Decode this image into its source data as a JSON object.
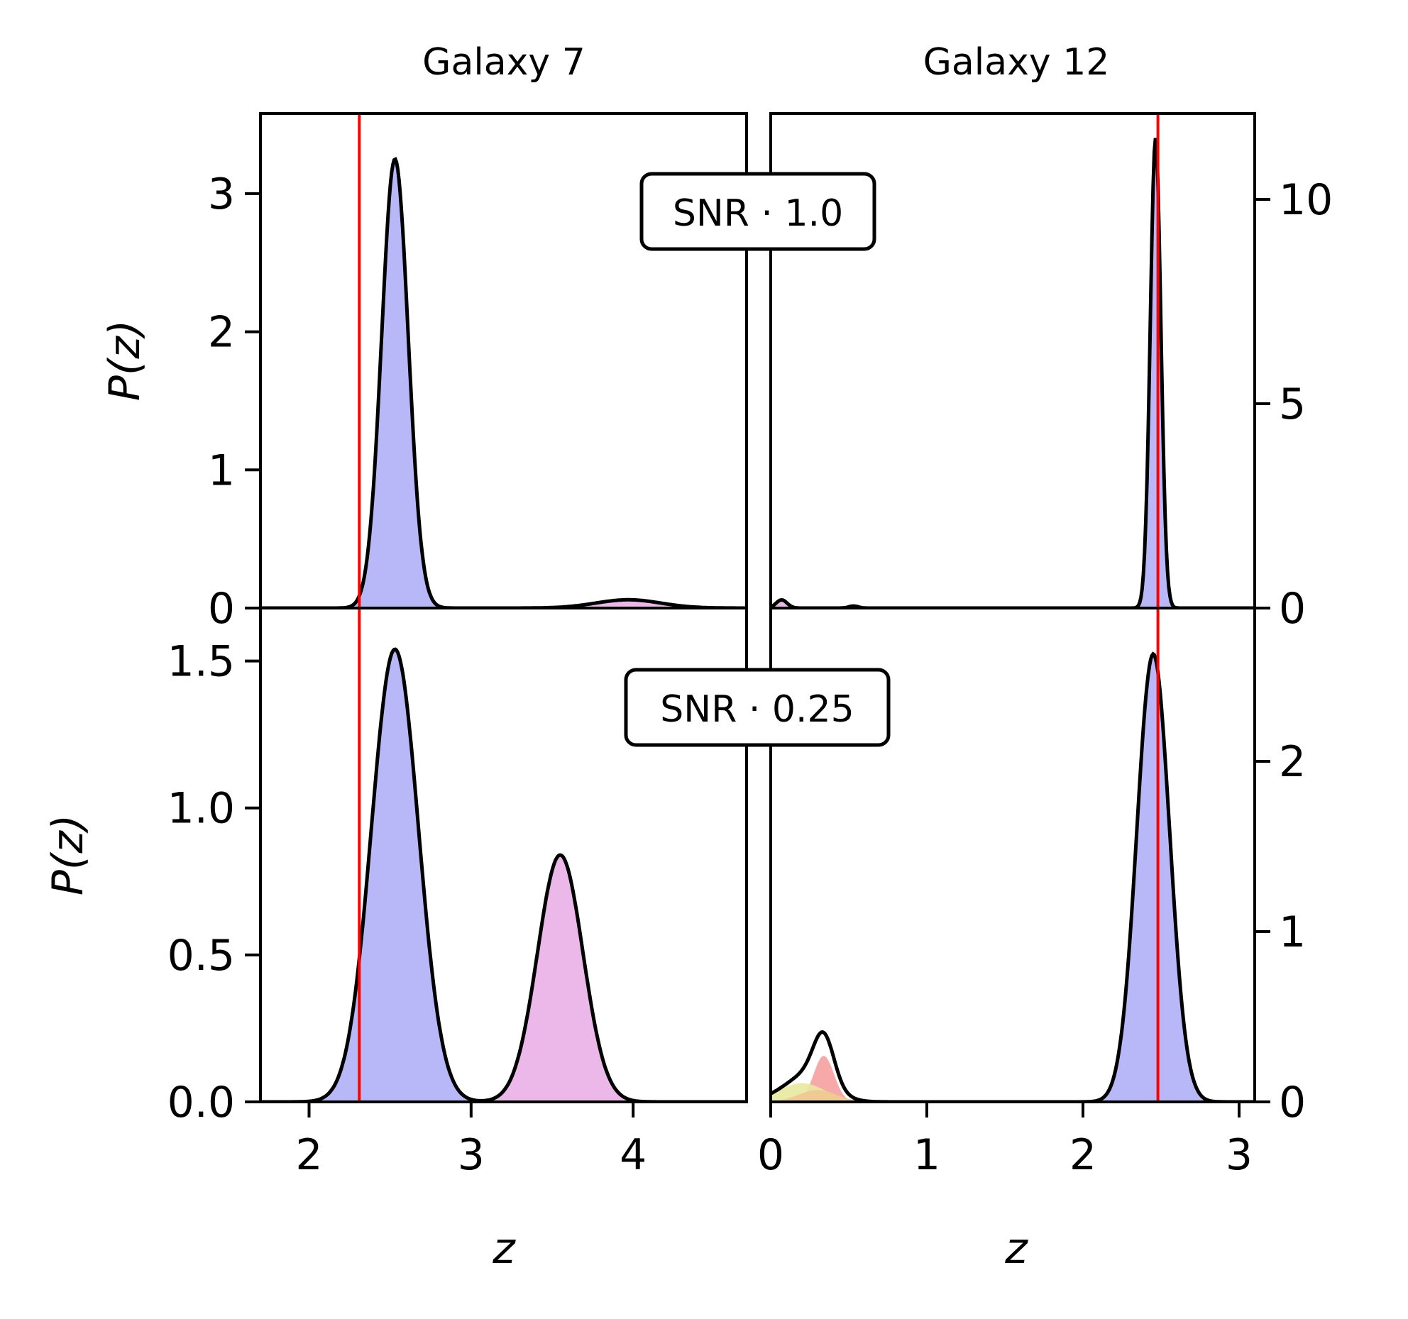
{
  "chart_data": [
    {
      "type": "area",
      "panel": "top-left",
      "title": "Galaxy 7",
      "annotation": "SNR · 1.0",
      "ylabel": "P(z)",
      "xlim": [
        1.7,
        4.7
      ],
      "ylim": [
        0,
        3.58
      ],
      "yticks": [
        "0",
        "1",
        "2",
        "3"
      ],
      "true_z": 2.31,
      "components": [
        {
          "color": "#b0b0f8",
          "mu": 2.53,
          "sigma": 0.082,
          "amp": 3.25
        },
        {
          "color": "#eab0e8",
          "mu": 3.97,
          "sigma": 0.2,
          "amp": 0.06
        }
      ]
    },
    {
      "type": "area",
      "panel": "top-right",
      "title": "Galaxy 12",
      "ylim": [
        0,
        12.1
      ],
      "xlim": [
        0,
        3.1
      ],
      "yticks": [
        "0",
        "5",
        "10"
      ],
      "true_z": 2.48,
      "components": [
        {
          "color": "#b0b0f8",
          "mu": 2.465,
          "sigma": 0.034,
          "amp": 11.5
        },
        {
          "color": "#eab0e8",
          "mu": 0.07,
          "sigma": 0.035,
          "amp": 0.2
        },
        {
          "color": "#eab0e8",
          "mu": 0.53,
          "sigma": 0.03,
          "amp": 0.05
        }
      ]
    },
    {
      "type": "area",
      "panel": "bottom-left",
      "annotation": "SNR · 0.25",
      "ylabel": "P(z)",
      "xlabel": "z",
      "xlim": [
        1.7,
        4.7
      ],
      "ylim": [
        0,
        1.68
      ],
      "yticks": [
        "0.0",
        "0.5",
        "1.0",
        "1.5"
      ],
      "xticks": [
        "2",
        "3",
        "4"
      ],
      "true_z": 2.31,
      "components": [
        {
          "color": "#b0b0f8",
          "mu": 2.53,
          "sigma": 0.145,
          "amp": 1.54
        },
        {
          "color": "#eab0e8",
          "mu": 3.55,
          "sigma": 0.14,
          "amp": 0.84
        }
      ]
    },
    {
      "type": "area",
      "panel": "bottom-right",
      "xlabel": "z",
      "xlim": [
        0,
        3.1
      ],
      "ylim": [
        0,
        2.9
      ],
      "yticks": [
        "0",
        "1",
        "2"
      ],
      "xticks": [
        "0",
        "1",
        "2",
        "3"
      ],
      "true_z": 2.48,
      "components": [
        {
          "color": "#b0b0f8",
          "mu": 2.45,
          "sigma": 0.105,
          "amp": 2.63
        },
        {
          "color": "#f6a0a0",
          "mu": 0.34,
          "sigma": 0.065,
          "amp": 0.27
        },
        {
          "color": "#e8e8a0",
          "mu": 0.2,
          "sigma": 0.15,
          "amp": 0.11
        },
        {
          "color": "#f0c890",
          "mu": 0.3,
          "sigma": 0.12,
          "amp": 0.07
        }
      ]
    }
  ]
}
